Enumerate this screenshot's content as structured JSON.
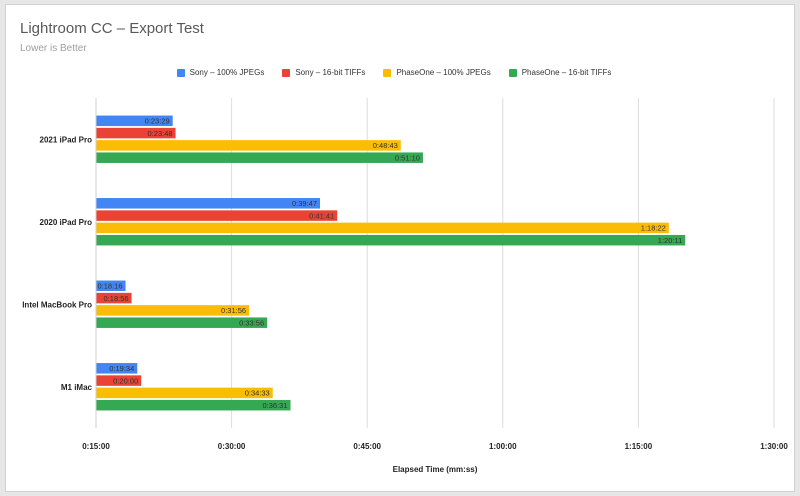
{
  "chart_data": {
    "type": "bar",
    "orientation": "horizontal",
    "title": "Lightroom CC – Export Test",
    "subtitle": "Lower is Better",
    "xlabel": "Elapsed Time (mm:ss)",
    "ylabel": "",
    "xlim_seconds": [
      900,
      5400
    ],
    "x_ticks": [
      {
        "value": 900,
        "label": "0:15:00"
      },
      {
        "value": 1800,
        "label": "0:30:00"
      },
      {
        "value": 2700,
        "label": "0:45:00"
      },
      {
        "value": 3600,
        "label": "1:00:00"
      },
      {
        "value": 4500,
        "label": "1:15:00"
      },
      {
        "value": 5400,
        "label": "1:30:00"
      }
    ],
    "grid": true,
    "legend_position": "top",
    "categories": [
      "2021 iPad Pro",
      "2020 iPad Pro",
      "Intel MacBook Pro",
      "M1 iMac"
    ],
    "series": [
      {
        "name": "Sony – 100% JPEGs",
        "color": "#4285f4",
        "values": [
          1409,
          2387,
          1096,
          1174
        ],
        "labels": [
          "0:23:29",
          "0:39:47",
          "0:18:16",
          "0:19:34"
        ]
      },
      {
        "name": "Sony – 16-bit TIFFs",
        "color": "#ea4335",
        "values": [
          1428,
          2501,
          1136,
          1200
        ],
        "labels": [
          "0:23:48",
          "0:41:41",
          "0:18:56",
          "0:20:00"
        ]
      },
      {
        "name": "PhaseOne – 100% JPEGs",
        "color": "#fbbc04",
        "values": [
          2923,
          4702,
          1916,
          2073
        ],
        "labels": [
          "0:48:43",
          "1:18:22",
          "0:31:56",
          "0:34:33"
        ]
      },
      {
        "name": "PhaseOne – 16-bit TIFFs",
        "color": "#34a853",
        "values": [
          3070,
          4811,
          2036,
          2191
        ],
        "labels": [
          "0:51:10",
          "1:20:11",
          "0:33:56",
          "0:36:31"
        ]
      }
    ]
  }
}
